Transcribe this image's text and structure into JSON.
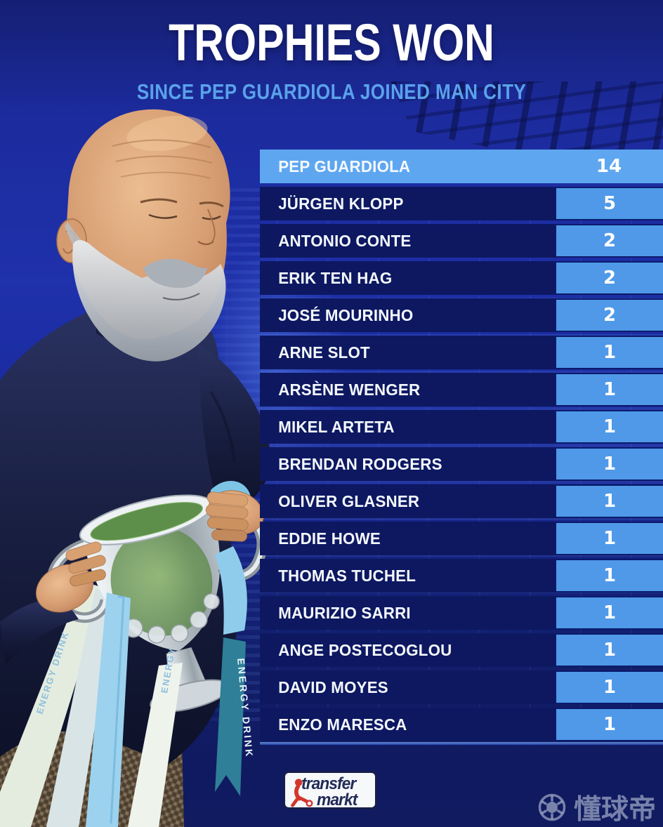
{
  "header": {
    "title": "TROPHIES WON",
    "subtitle": "SINCE PEP GUARDIOLA JOINED MAN CITY"
  },
  "table": {
    "rows": [
      {
        "name": "PEP GUARDIOLA",
        "value": "14",
        "highlight": true
      },
      {
        "name": "JÜRGEN KLOPP",
        "value": "5",
        "highlight": false
      },
      {
        "name": "ANTONIO CONTE",
        "value": "2",
        "highlight": false
      },
      {
        "name": "ERIK TEN HAG",
        "value": "2",
        "highlight": false
      },
      {
        "name": "JOSÉ MOURINHO",
        "value": "2",
        "highlight": false
      },
      {
        "name": "ARNE SLOT",
        "value": "1",
        "highlight": false
      },
      {
        "name": "ARSÈNE WENGER",
        "value": "1",
        "highlight": false
      },
      {
        "name": "MIKEL ARTETA",
        "value": "1",
        "highlight": false
      },
      {
        "name": "BRENDAN RODGERS",
        "value": "1",
        "highlight": false
      },
      {
        "name": "OLIVER GLASNER",
        "value": "1",
        "highlight": false
      },
      {
        "name": "EDDIE HOWE",
        "value": "1",
        "highlight": false
      },
      {
        "name": "THOMAS TUCHEL",
        "value": "1",
        "highlight": false
      },
      {
        "name": "MAURIZIO SARRI",
        "value": "1",
        "highlight": false
      },
      {
        "name": "ANGE POSTECOGLOU",
        "value": "1",
        "highlight": false
      },
      {
        "name": "DAVID MOYES",
        "value": "1",
        "highlight": false
      },
      {
        "name": "ENZO MARESCA",
        "value": "1",
        "highlight": false
      }
    ]
  },
  "chart_data": {
    "type": "bar",
    "orientation": "horizontal",
    "title": "TROPHIES WON",
    "subtitle": "SINCE PEP GUARDIOLA JOINED MAN CITY",
    "categories": [
      "PEP GUARDIOLA",
      "JÜRGEN KLOPP",
      "ANTONIO CONTE",
      "ERIK TEN HAG",
      "JOSÉ MOURINHO",
      "ARNE SLOT",
      "ARSÈNE WENGER",
      "MIKEL ARTETA",
      "BRENDAN RODGERS",
      "OLIVER GLASNER",
      "EDDIE HOWE",
      "THOMAS TUCHEL",
      "MAURIZIO SARRI",
      "ANGE POSTECOGLOU",
      "DAVID MOYES",
      "ENZO MARESCA"
    ],
    "values": [
      14,
      5,
      2,
      2,
      2,
      1,
      1,
      1,
      1,
      1,
      1,
      1,
      1,
      1,
      1,
      1
    ],
    "xlabel": "",
    "ylabel": "",
    "legend": "none",
    "grid": false,
    "highlighted_category": "PEP GUARDIOLA"
  },
  "branding": {
    "logo_line1": "transfer",
    "logo_line2": "markt"
  },
  "watermark": {
    "icon": "football-icon",
    "text": "懂球帝"
  },
  "colors": {
    "background_blue": "#1c2b9d",
    "row_navy": "#0d1861",
    "bar_blue": "#4f99e8",
    "highlight_blue": "#5ea7f0",
    "subtitle_blue": "#5aa2ea",
    "title_white": "#ffffff",
    "logo_navy": "#222b57",
    "logo_red": "#d3362d",
    "ribbon_sky": "#9cd2ee",
    "ribbon_teal": "#2e7f97",
    "trophy_silver": "#c3ccd3",
    "trophy_green": "#5d8f4a"
  }
}
